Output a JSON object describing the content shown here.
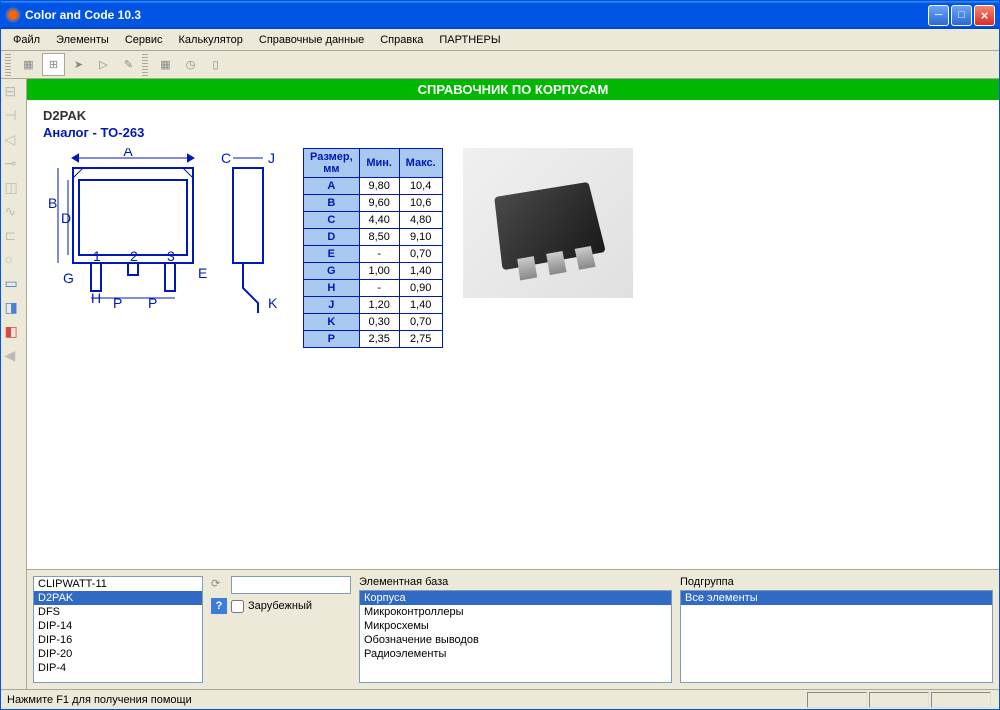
{
  "window": {
    "title": "Color and Code 10.3"
  },
  "menu": {
    "items": [
      "Файл",
      "Элементы",
      "Сервис",
      "Калькулятор",
      "Справочные данные",
      "Справка",
      "ПАРТНЕРЫ"
    ]
  },
  "header": {
    "title": "СПРАВОЧНИК ПО КОРПУСАМ"
  },
  "part": {
    "name": "D2PAK",
    "analog_label": "Аналог - TO-263"
  },
  "dim_table": {
    "headers": [
      "Размер, мм",
      "Мин.",
      "Макс."
    ],
    "rows": [
      {
        "d": "A",
        "min": "9,80",
        "max": "10,4"
      },
      {
        "d": "B",
        "min": "9,60",
        "max": "10,6"
      },
      {
        "d": "C",
        "min": "4,40",
        "max": "4,80"
      },
      {
        "d": "D",
        "min": "8,50",
        "max": "9,10"
      },
      {
        "d": "E",
        "min": "-",
        "max": "0,70"
      },
      {
        "d": "G",
        "min": "1,00",
        "max": "1,40"
      },
      {
        "d": "H",
        "min": "-",
        "max": "0,90"
      },
      {
        "d": "J",
        "min": "1,20",
        "max": "1,40"
      },
      {
        "d": "K",
        "min": "0,30",
        "max": "0,70"
      },
      {
        "d": "P",
        "min": "2,35",
        "max": "2,75"
      }
    ]
  },
  "package_list": {
    "items": [
      "CLIPWATT-11",
      "D2PAK",
      "DFS",
      "DIP-14",
      "DIP-16",
      "DIP-20",
      "DIP-4"
    ],
    "selected": "D2PAK"
  },
  "search": {
    "value": "",
    "foreign_label": "Зарубежный",
    "foreign_checked": false
  },
  "element_base": {
    "label": "Элементная база",
    "items": [
      "Корпуса",
      "Микроконтроллеры",
      "Микросхемы",
      "Обозначение выводов",
      "Радиоэлементы"
    ],
    "selected": "Корпуса"
  },
  "subgroup": {
    "label": "Подгруппа",
    "items": [
      "Все элементы"
    ],
    "selected": "Все элементы"
  },
  "statusbar": {
    "text": "Нажмите F1 для получения помощи"
  }
}
